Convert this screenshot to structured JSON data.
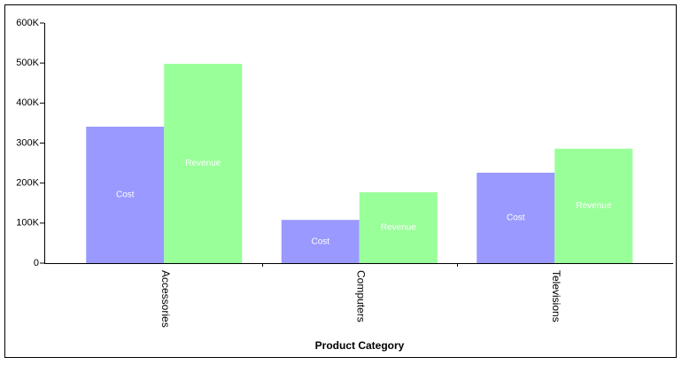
{
  "chart_data": {
    "type": "bar",
    "x_label": "Product Category",
    "categories": [
      "Accessories",
      "Computers",
      "Televisions"
    ],
    "series": [
      {
        "name": "Cost",
        "color": "#9999ff",
        "values": [
          341000,
          108000,
          226000
        ]
      },
      {
        "name": "Revenue",
        "color": "#99ff99",
        "values": [
          498000,
          177000,
          286000
        ]
      }
    ],
    "ylim": [
      0,
      600000
    ],
    "yticks": [
      0,
      {
        "value": 100000,
        "label": "100K"
      },
      {
        "value": 200000,
        "label": "200K"
      },
      {
        "value": 300000,
        "label": "300K"
      },
      {
        "value": 400000,
        "label": "400K"
      },
      {
        "value": 500000,
        "label": "500K"
      },
      {
        "value": 600000,
        "label": "600K"
      }
    ]
  }
}
